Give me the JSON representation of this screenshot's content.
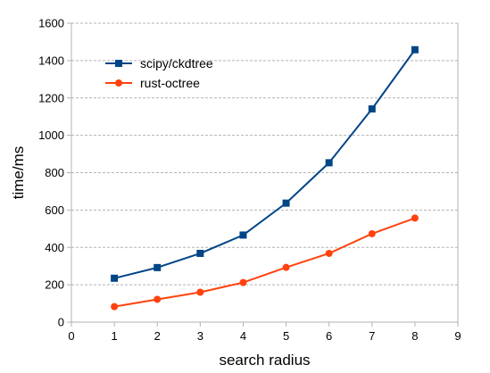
{
  "chart_data": {
    "type": "line",
    "title": "",
    "xlabel": "search radius",
    "ylabel": "time/ms",
    "xlim": [
      0,
      9
    ],
    "ylim": [
      0,
      1600
    ],
    "xticks": [
      0,
      1,
      2,
      3,
      4,
      5,
      6,
      7,
      8,
      9
    ],
    "yticks": [
      0,
      200,
      400,
      600,
      800,
      1000,
      1200,
      1400,
      1600
    ],
    "grid": "horizontal dashed",
    "legend": "top-left",
    "series": [
      {
        "name": "scipy/ckdtree",
        "color": "#004586",
        "marker": "square",
        "x": [
          1,
          2,
          3,
          4,
          5,
          6,
          7,
          8
        ],
        "y": [
          235,
          292,
          368,
          466,
          637,
          853,
          1141,
          1458
        ]
      },
      {
        "name": "rust-octree",
        "color": "#ff420e",
        "marker": "circle",
        "x": [
          1,
          2,
          3,
          4,
          5,
          6,
          7,
          8
        ],
        "y": [
          83,
          122,
          160,
          212,
          293,
          368,
          473,
          557
        ]
      }
    ]
  }
}
